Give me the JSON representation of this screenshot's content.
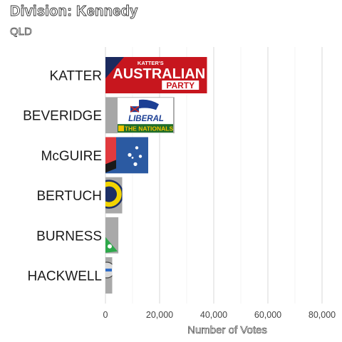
{
  "title": "Division: Kennedy",
  "subtitle": "QLD",
  "chart_data": {
    "type": "bar",
    "orientation": "horizontal",
    "title": "Division: Kennedy",
    "subtitle": "QLD",
    "xlabel": "Number of Votes",
    "ylabel": "",
    "xlim": [
      0,
      90000
    ],
    "xticks": [
      0,
      20000,
      40000,
      60000,
      80000
    ],
    "xtick_labels": [
      "0",
      "20,000",
      "40,000",
      "60,000",
      "80,000"
    ],
    "grid": true,
    "categories": [
      "KATTER",
      "BEVERIDGE",
      "McGUIRE",
      "BERTUCH",
      "BURNESS",
      "HACKWELL"
    ],
    "values": [
      37500,
      25500,
      15800,
      6200,
      4800,
      2500
    ],
    "bar_images": [
      {
        "party": "katter",
        "text_lines": [
          "KATTER'S",
          "AUSTRALIAN",
          "PARTY"
        ]
      },
      {
        "party": "liberal-nationals",
        "text_lines": [
          "LIBERAL",
          "THE NATIONALS"
        ]
      },
      {
        "party": "labor",
        "text_lines": []
      },
      {
        "party": "one-nation",
        "text_lines": []
      },
      {
        "party": "greens",
        "text_lines": []
      },
      {
        "party": "other",
        "text_lines": []
      }
    ]
  }
}
